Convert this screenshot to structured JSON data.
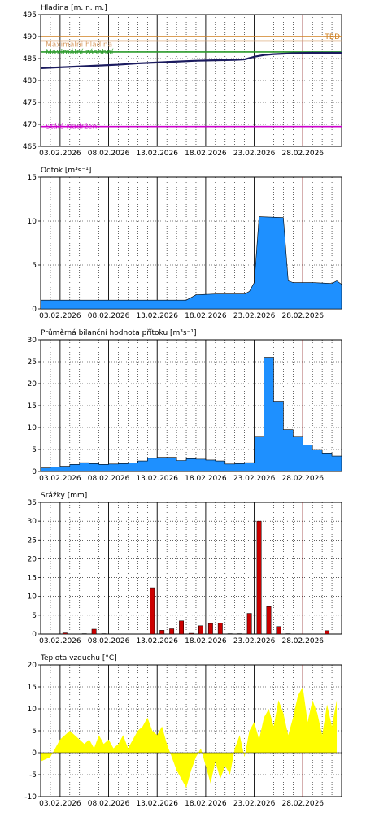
{
  "date_labels": [
    "03.02.2026",
    "08.02.2026",
    "13.02.2026",
    "18.02.2026",
    "23.02.2026",
    "28.02.2026"
  ],
  "colors": {
    "level": "#1a1a5e",
    "outflow": "#1e90ff",
    "inflow": "#1e90ff",
    "precip": "#cc0000",
    "temperature": "#ffff00",
    "grid": "#000000",
    "today": "#cc0000"
  },
  "chart_data": [
    {
      "type": "line",
      "title": "Hladina [m. n. m.]",
      "x_range": [
        0,
        31
      ],
      "ylim": [
        465,
        495
      ],
      "yticks": [
        465,
        470,
        475,
        480,
        485,
        490,
        495
      ],
      "levels": [
        {
          "name": "TBD",
          "value": 490,
          "color": "#d08020"
        },
        {
          "name": "Maximální hladina",
          "value": 489,
          "color": "#d9a06a"
        },
        {
          "name": "Maximální zásobní",
          "value": 486.5,
          "color": "#2a9a2a"
        },
        {
          "name": "Stálé Nadržení",
          "value": 469.5,
          "color": "#cc00cc"
        }
      ],
      "x": [
        0,
        2,
        4,
        6,
        8,
        10,
        12,
        14,
        16,
        18,
        20,
        21,
        22,
        23,
        24,
        26,
        28,
        29,
        30,
        31
      ],
      "values": [
        482.8,
        483.0,
        483.2,
        483.4,
        483.6,
        483.9,
        484.1,
        484.3,
        484.5,
        484.6,
        484.7,
        484.8,
        485.4,
        485.8,
        486.0,
        486.2,
        486.3,
        486.3,
        486.3,
        486.3
      ]
    },
    {
      "type": "area",
      "title": "Odtok [m³s⁻¹]",
      "x_range": [
        0,
        31
      ],
      "ylim": [
        0,
        15
      ],
      "yticks": [
        0,
        5,
        10,
        15
      ],
      "x": [
        0,
        3,
        6,
        9,
        12,
        15,
        16,
        18,
        21,
        21.5,
        22,
        22.5,
        25,
        25.5,
        26,
        28,
        30,
        30.5,
        31
      ],
      "values": [
        1.0,
        1.0,
        1.0,
        1.0,
        1.0,
        1.0,
        1.6,
        1.7,
        1.7,
        2.0,
        3.0,
        10.5,
        10.4,
        3.2,
        3.0,
        3.0,
        2.9,
        3.2,
        2.8
      ]
    },
    {
      "type": "area",
      "title": "Průměrná bilanční hodnota přítoku [m³s⁻¹]",
      "x_range": [
        0,
        31
      ],
      "ylim": [
        0,
        30
      ],
      "yticks": [
        0,
        5,
        10,
        15,
        20,
        25,
        30
      ],
      "x": [
        0,
        1,
        2,
        3,
        4,
        5,
        6,
        7,
        8,
        9,
        10,
        11,
        12,
        13,
        14,
        15,
        16,
        17,
        18,
        19,
        20,
        21,
        22,
        23,
        24,
        25,
        26,
        27,
        28,
        29,
        30
      ],
      "values": [
        0.8,
        1.0,
        1.2,
        1.6,
        2.0,
        1.8,
        1.6,
        1.7,
        1.8,
        1.9,
        2.4,
        3.0,
        3.2,
        3.2,
        2.5,
        2.9,
        2.8,
        2.6,
        2.4,
        1.7,
        1.8,
        2.0,
        8.0,
        26.0,
        16.0,
        9.5,
        8.0,
        6.0,
        5.0,
        4.2,
        3.5
      ]
    },
    {
      "type": "bar",
      "title": "Srážky [mm]",
      "x_range": [
        0,
        31
      ],
      "ylim": [
        0,
        35
      ],
      "yticks": [
        0,
        5,
        10,
        15,
        20,
        25,
        30,
        35
      ],
      "x": [
        2,
        4,
        5,
        6,
        11,
        12,
        13,
        14,
        15,
        16,
        17,
        18,
        19,
        20,
        21,
        22,
        23,
        24,
        25,
        29
      ],
      "values": [
        0.3,
        0.1,
        1.3,
        0.1,
        12.3,
        1.0,
        1.4,
        3.5,
        0.2,
        2.2,
        2.8,
        2.9,
        0.1,
        0.1,
        5.5,
        30.0,
        7.3,
        2.0,
        0.1,
        0.9
      ]
    },
    {
      "type": "area",
      "title": "Teplota vzduchu [°C]",
      "x_range": [
        0,
        31
      ],
      "ylim": [
        -10,
        20
      ],
      "yticks": [
        -10,
        -5,
        0,
        5,
        10,
        15,
        20
      ],
      "x": [
        0,
        0.5,
        1,
        1.5,
        2,
        2.5,
        3,
        3.5,
        4,
        4.5,
        5,
        5.5,
        6,
        6.5,
        7,
        7.5,
        8,
        8.5,
        9,
        9.5,
        10,
        10.5,
        11,
        11.5,
        12,
        12.5,
        13,
        13.5,
        14,
        14.5,
        15,
        15.5,
        16,
        16.5,
        17,
        17.5,
        18,
        18.5,
        19,
        19.5,
        20,
        20.5,
        21,
        21.5,
        22,
        22.5,
        23,
        23.5,
        24,
        24.5,
        25,
        25.5,
        26,
        26.5,
        27,
        27.5,
        28,
        28.5,
        29,
        29.5,
        30,
        30.5
      ],
      "values": [
        -2,
        -1.5,
        -1,
        1,
        3,
        4,
        5,
        4,
        3,
        2,
        3,
        1,
        4,
        2,
        3,
        1,
        2,
        4,
        1,
        3,
        5,
        6,
        8,
        5,
        4,
        6,
        2,
        -1,
        -4,
        -6,
        -8,
        -4,
        -1,
        1,
        -3,
        -7,
        -2,
        -6,
        -3,
        -5,
        1,
        4,
        -1,
        5,
        7,
        3,
        8,
        10,
        6,
        12,
        9,
        4,
        8,
        13,
        15,
        7,
        12,
        9,
        4,
        11,
        6,
        12
      ]
    }
  ]
}
